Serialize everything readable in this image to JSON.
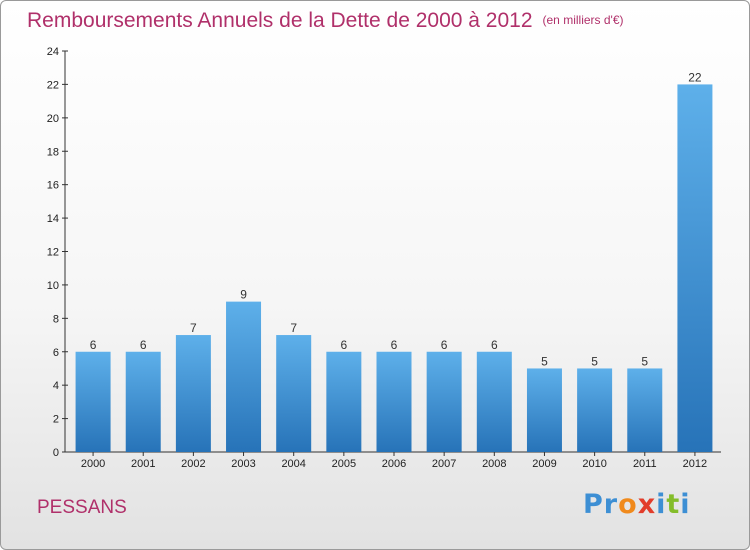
{
  "chart_data": {
    "type": "bar",
    "title": "Remboursements Annuels de la Dette de 2000 à 2012",
    "subtitle": "(en milliers d'€)",
    "categories": [
      "2000",
      "2001",
      "2002",
      "2003",
      "2004",
      "2005",
      "2006",
      "2007",
      "2008",
      "2009",
      "2010",
      "2011",
      "2012"
    ],
    "values": [
      6,
      6,
      7,
      9,
      7,
      6,
      6,
      6,
      6,
      5,
      5,
      5,
      22
    ],
    "ylim": [
      0,
      24
    ],
    "yticks": [
      0,
      2,
      4,
      6,
      8,
      10,
      12,
      14,
      16,
      18,
      20,
      22,
      24
    ],
    "grid": false,
    "bar_color": "#3a8fd8"
  },
  "place_name": "PESSANS",
  "brand": {
    "letters": [
      "P",
      "r",
      "o",
      "x",
      "i",
      "t",
      "i"
    ],
    "colors": [
      "#3d8fd4",
      "#3d8fd4",
      "#f08a1c",
      "#e23d2b",
      "#3d8fd4",
      "#84bd2a",
      "#3d8fd4"
    ]
  }
}
